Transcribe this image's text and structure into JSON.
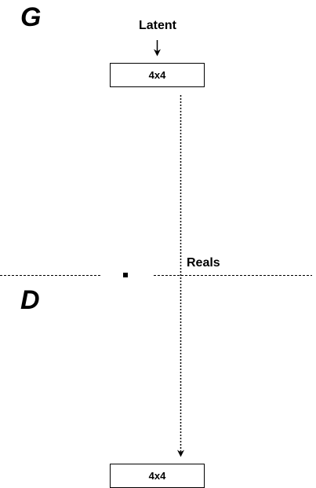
{
  "generator": {
    "letter": "G",
    "input_label": "Latent",
    "block_label": "4x4"
  },
  "discriminator": {
    "letter": "D",
    "input_label": "Reals",
    "block_label": "4x4"
  },
  "colors": {
    "ink": "#000000",
    "background": "#ffffff"
  }
}
